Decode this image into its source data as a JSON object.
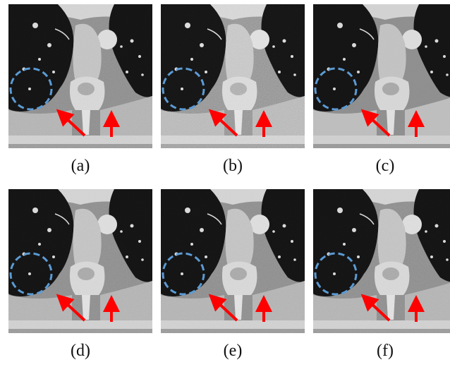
{
  "panels": [
    {
      "id": "a",
      "label": "(a)",
      "noise": "low"
    },
    {
      "id": "b",
      "label": "(b)",
      "noise": "high"
    },
    {
      "id": "c",
      "label": "(c)",
      "noise": "smooth"
    },
    {
      "id": "d",
      "label": "(d)",
      "noise": "low"
    },
    {
      "id": "e",
      "label": "(e)",
      "noise": "low"
    },
    {
      "id": "f",
      "label": "(f)",
      "noise": "low"
    }
  ],
  "annotation_colors": {
    "circle": "#5b9bd5",
    "arrow": "#ff0000"
  }
}
